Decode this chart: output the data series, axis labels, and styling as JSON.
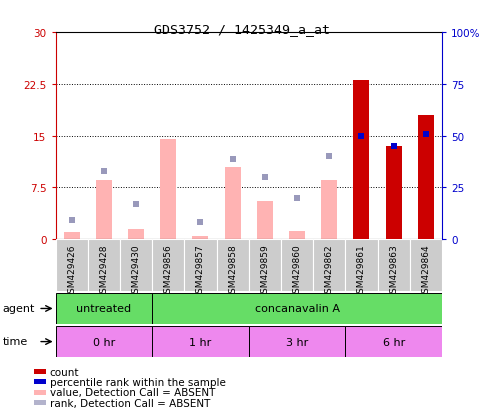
{
  "title": "GDS3752 / 1425349_a_at",
  "samples": [
    "GSM429426",
    "GSM429428",
    "GSM429430",
    "GSM429856",
    "GSM429857",
    "GSM429858",
    "GSM429859",
    "GSM429860",
    "GSM429862",
    "GSM429861",
    "GSM429863",
    "GSM429864"
  ],
  "count_values": [
    null,
    null,
    null,
    null,
    null,
    null,
    null,
    null,
    null,
    23.0,
    13.5,
    18.0
  ],
  "rank_values": [
    null,
    null,
    null,
    null,
    null,
    null,
    null,
    null,
    null,
    50.0,
    45.0,
    51.0
  ],
  "absent_value_bars": [
    1.0,
    8.5,
    1.5,
    14.5,
    0.5,
    10.5,
    5.5,
    1.2,
    8.5,
    null,
    null,
    null
  ],
  "absent_rank_dots": [
    9.0,
    33.0,
    17.0,
    null,
    8.5,
    38.5,
    30.0,
    20.0,
    40.0,
    null,
    null,
    null
  ],
  "ylim_left": [
    0,
    30
  ],
  "ylim_right": [
    0,
    100
  ],
  "yticks_left": [
    0,
    7.5,
    15,
    22.5,
    30
  ],
  "yticks_right": [
    0,
    25,
    50,
    75,
    100
  ],
  "ytick_labels_left": [
    "0",
    "7.5",
    "15",
    "22.5",
    "30"
  ],
  "ytick_labels_right": [
    "0",
    "25",
    "50",
    "75",
    "100%"
  ],
  "agent_groups": [
    {
      "label": "untreated",
      "start": 0,
      "end": 3,
      "color": "#66dd66"
    },
    {
      "label": "concanavalin A",
      "start": 3,
      "end": 12,
      "color": "#66dd66"
    }
  ],
  "time_groups": [
    {
      "label": "0 hr",
      "start": 0,
      "end": 3,
      "color": "#ee88ee"
    },
    {
      "label": "1 hr",
      "start": 3,
      "end": 6,
      "color": "#ee88ee"
    },
    {
      "label": "3 hr",
      "start": 6,
      "end": 9,
      "color": "#ee88ee"
    },
    {
      "label": "6 hr",
      "start": 9,
      "end": 12,
      "color": "#ee88ee"
    }
  ],
  "legend_items": [
    {
      "color": "#cc0000",
      "label": "count"
    },
    {
      "color": "#0000cc",
      "label": "percentile rank within the sample"
    },
    {
      "color": "#ffb3b3",
      "label": "value, Detection Call = ABSENT"
    },
    {
      "color": "#b3b3cc",
      "label": "rank, Detection Call = ABSENT"
    }
  ],
  "bar_color_count": "#cc0000",
  "bar_color_absent_value": "#ffb3b3",
  "dot_color_rank_count": "#0000cc",
  "dot_color_rank_absent": "#9999bb",
  "left_axis_color": "#cc0000",
  "right_axis_color": "#0000cc",
  "bg_color": "#ffffff",
  "sample_bg": "#cccccc",
  "agent_bg": "#66dd66",
  "time_bg": "#ee88ee"
}
